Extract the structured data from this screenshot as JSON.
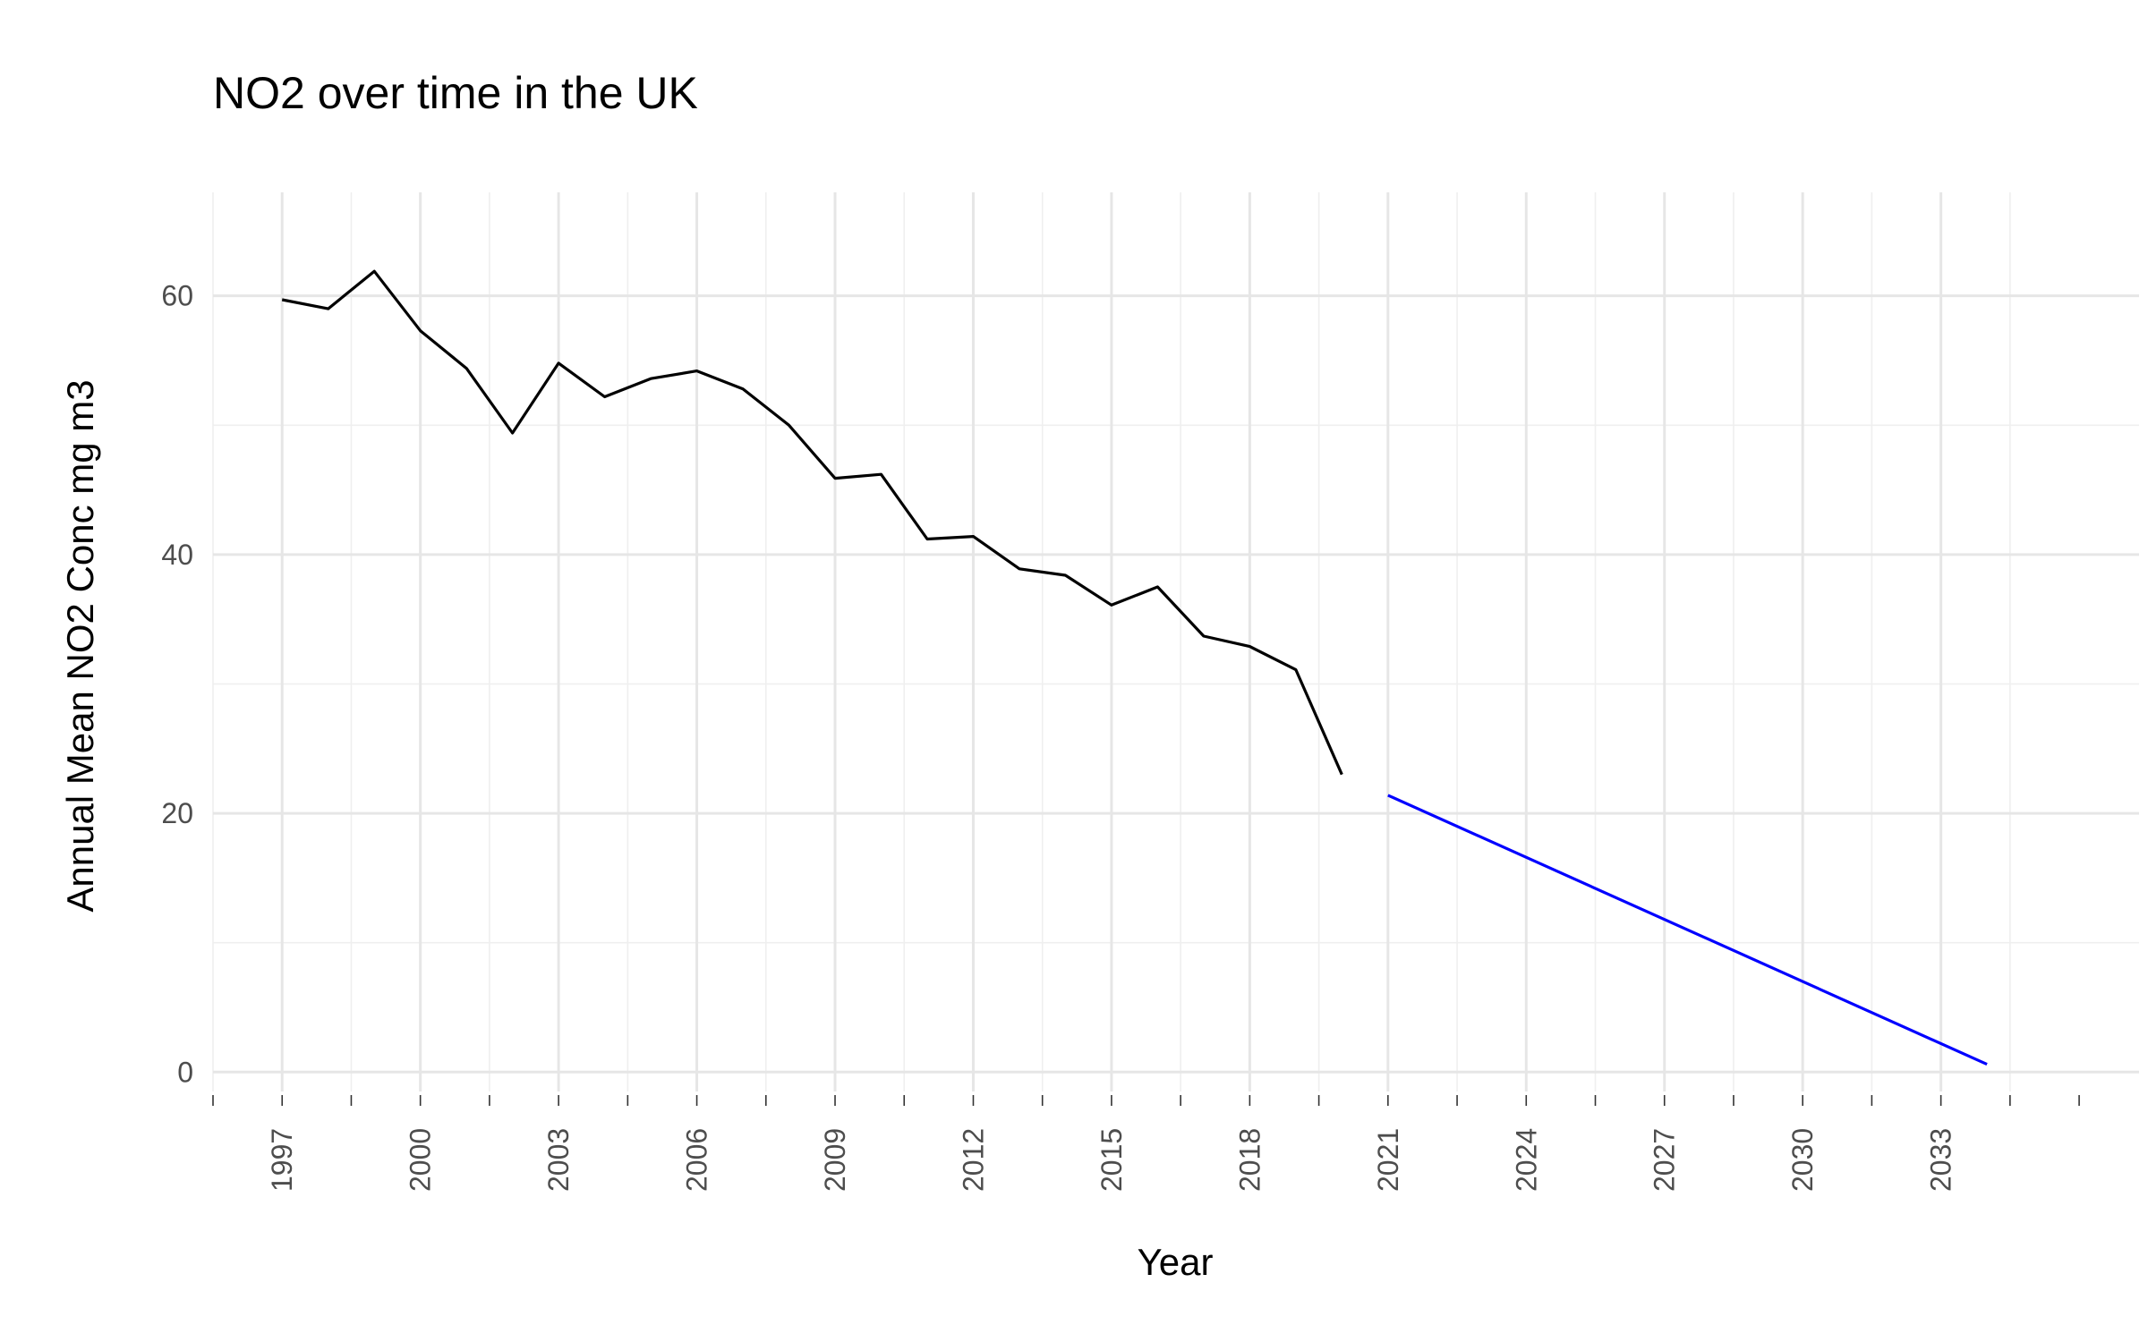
{
  "chart_data": {
    "type": "line",
    "title": "NO2 over time in the UK",
    "xlabel": "Year",
    "ylabel": "Annual Mean NO2 Conc mg m3",
    "xlim": [
      1995.5,
      2037.3
    ],
    "ylim": [
      -1.5,
      68
    ],
    "x_ticks": [
      1997,
      2000,
      2003,
      2006,
      2009,
      2012,
      2015,
      2018,
      2021,
      2024,
      2027,
      2030,
      2033
    ],
    "y_ticks": [
      0,
      20,
      40,
      60
    ],
    "grid": true,
    "legend": "none",
    "series": [
      {
        "color": "#000000",
        "x": [
          1997,
          1998,
          1999,
          2000,
          2001,
          2002,
          2003,
          2004,
          2005,
          2006,
          2007,
          2008,
          2009,
          2010,
          2011,
          2012,
          2013,
          2014,
          2015,
          2016,
          2017,
          2018,
          2019,
          2020
        ],
        "y": [
          59.7,
          59.0,
          61.9,
          57.3,
          54.4,
          49.4,
          54.8,
          52.2,
          53.6,
          54.2,
          52.8,
          50.0,
          45.9,
          46.2,
          41.2,
          41.4,
          38.9,
          38.4,
          36.1,
          37.5,
          33.7,
          32.9,
          31.1,
          23.0
        ]
      },
      {
        "color": "#0000ff",
        "x": [
          2021,
          2034
        ],
        "y": [
          21.4,
          0.6
        ]
      }
    ]
  }
}
